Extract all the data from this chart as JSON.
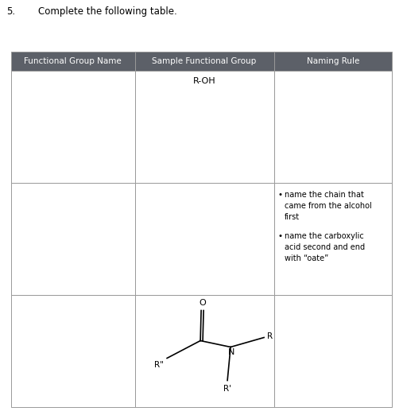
{
  "title_num": "5.",
  "title_text": "Complete the following table.",
  "col_headers": [
    "Functional Group Name",
    "Sample Functional Group",
    "Naming Rule"
  ],
  "header_bg": "#5c6068",
  "header_text_color": "#ffffff",
  "row1_col2": "R-OH",
  "rule1": "name the chain that came from the alcohol first",
  "rule2": "name the carboxylic acid second and end with “oate”",
  "grid_color": "#999999",
  "bg_color": "#ffffff",
  "text_color": "#000000",
  "font_size": 7.5,
  "title_font_size": 8.5,
  "header_font_size": 7.5
}
